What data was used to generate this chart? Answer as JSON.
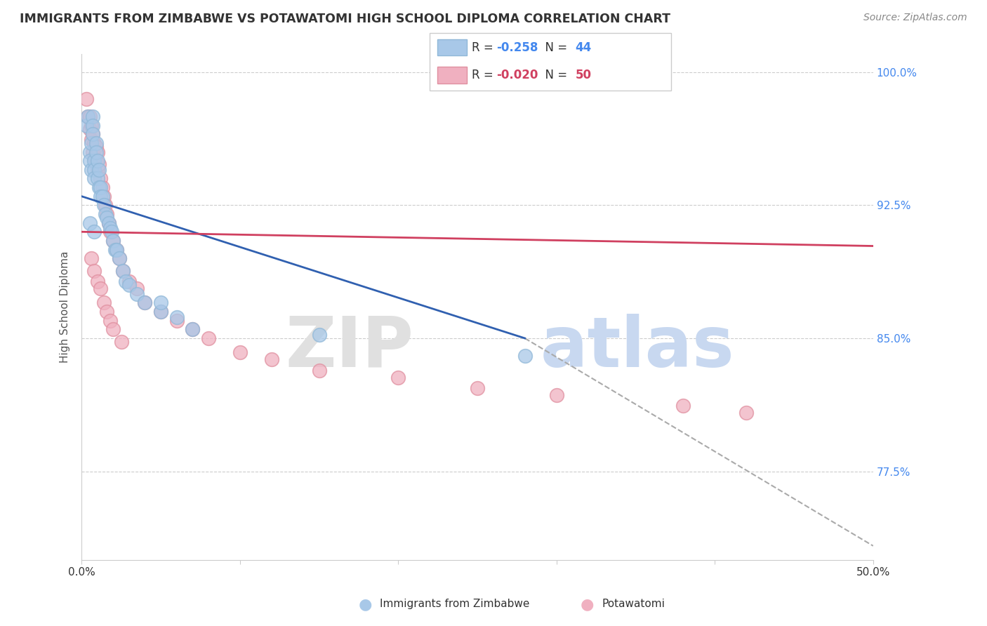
{
  "title": "IMMIGRANTS FROM ZIMBABWE VS POTAWATOMI HIGH SCHOOL DIPLOMA CORRELATION CHART",
  "source": "Source: ZipAtlas.com",
  "ylabel": "High School Diploma",
  "xlim": [
    0.0,
    0.5
  ],
  "ylim": [
    0.725,
    1.01
  ],
  "ytick_labels_right": [
    "100.0%",
    "92.5%",
    "85.0%",
    "77.5%"
  ],
  "ytick_vals_right": [
    1.0,
    0.925,
    0.85,
    0.775
  ],
  "blue_R": -0.258,
  "blue_N": 44,
  "pink_R": -0.02,
  "pink_N": 50,
  "blue_color": "#a8c8e8",
  "pink_color": "#f0b0c0",
  "blue_edge_color": "#90b8d8",
  "pink_edge_color": "#e090a0",
  "blue_line_color": "#3060b0",
  "pink_line_color": "#d04060",
  "blue_scatter_x": [
    0.003,
    0.004,
    0.005,
    0.005,
    0.006,
    0.006,
    0.007,
    0.007,
    0.007,
    0.008,
    0.008,
    0.008,
    0.009,
    0.009,
    0.01,
    0.01,
    0.011,
    0.011,
    0.012,
    0.012,
    0.013,
    0.014,
    0.015,
    0.016,
    0.017,
    0.018,
    0.019,
    0.02,
    0.021,
    0.022,
    0.024,
    0.026,
    0.028,
    0.03,
    0.035,
    0.04,
    0.05,
    0.06,
    0.07,
    0.15,
    0.005,
    0.008,
    0.05,
    0.28
  ],
  "blue_scatter_y": [
    0.97,
    0.975,
    0.955,
    0.95,
    0.96,
    0.945,
    0.975,
    0.97,
    0.965,
    0.95,
    0.945,
    0.94,
    0.96,
    0.955,
    0.95,
    0.94,
    0.945,
    0.935,
    0.935,
    0.93,
    0.93,
    0.925,
    0.92,
    0.918,
    0.915,
    0.912,
    0.91,
    0.905,
    0.9,
    0.9,
    0.895,
    0.888,
    0.882,
    0.88,
    0.875,
    0.87,
    0.865,
    0.862,
    0.855,
    0.852,
    0.915,
    0.91,
    0.87,
    0.84
  ],
  "pink_scatter_x": [
    0.003,
    0.004,
    0.005,
    0.005,
    0.006,
    0.006,
    0.007,
    0.007,
    0.008,
    0.008,
    0.009,
    0.009,
    0.01,
    0.01,
    0.011,
    0.012,
    0.013,
    0.014,
    0.015,
    0.016,
    0.017,
    0.018,
    0.02,
    0.022,
    0.024,
    0.026,
    0.03,
    0.035,
    0.04,
    0.05,
    0.06,
    0.07,
    0.08,
    0.1,
    0.12,
    0.15,
    0.2,
    0.25,
    0.3,
    0.38,
    0.42,
    0.006,
    0.008,
    0.01,
    0.012,
    0.014,
    0.016,
    0.018,
    0.02,
    0.025
  ],
  "pink_scatter_y": [
    0.985,
    0.975,
    0.975,
    0.968,
    0.97,
    0.962,
    0.965,
    0.955,
    0.96,
    0.952,
    0.958,
    0.95,
    0.955,
    0.945,
    0.948,
    0.94,
    0.935,
    0.93,
    0.925,
    0.92,
    0.915,
    0.91,
    0.905,
    0.9,
    0.895,
    0.888,
    0.882,
    0.878,
    0.87,
    0.865,
    0.86,
    0.855,
    0.85,
    0.842,
    0.838,
    0.832,
    0.828,
    0.822,
    0.818,
    0.812,
    0.808,
    0.895,
    0.888,
    0.882,
    0.878,
    0.87,
    0.865,
    0.86,
    0.855,
    0.848
  ],
  "blue_line_x0": 0.0,
  "blue_line_y0": 0.93,
  "blue_line_x1": 0.28,
  "blue_line_y1": 0.85,
  "pink_line_x0": 0.0,
  "pink_line_y0": 0.91,
  "pink_line_x1": 0.5,
  "pink_line_y1": 0.902,
  "dash_line_x0": 0.28,
  "dash_line_y0": 0.85,
  "dash_line_x1": 0.5,
  "dash_line_y1": 0.733
}
